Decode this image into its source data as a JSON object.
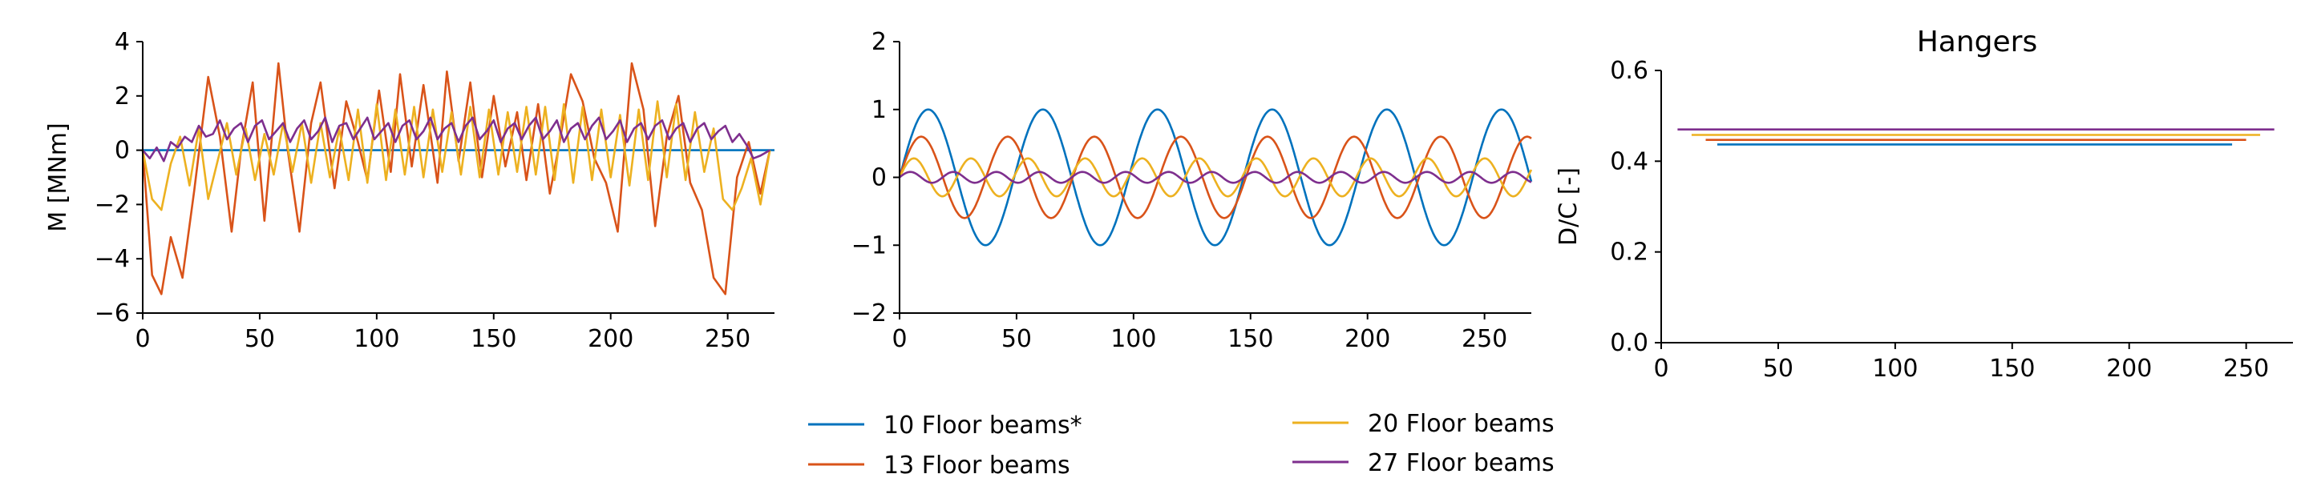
{
  "legend": {
    "items": [
      {
        "label": "10 Floor beams*",
        "color": "#0072BD"
      },
      {
        "label": "13 Floor beams",
        "color": "#D95319"
      },
      {
        "label": "20 Floor beams",
        "color": "#EDB120"
      },
      {
        "label": "27 Floor beams",
        "color": "#7E2F8E"
      }
    ]
  },
  "chart_data": [
    {
      "type": "line",
      "title": "",
      "xlabel": "",
      "ylabel": "M [MNm]",
      "xlim": [
        0,
        270
      ],
      "ylim": [
        -6,
        4
      ],
      "xticks": [
        "0",
        "50",
        "100",
        "150",
        "200",
        "250"
      ],
      "yticks": [
        "4",
        "2",
        "0",
        "−2",
        "−4",
        "−6"
      ],
      "grid": false,
      "series": [
        {
          "name": "10 Floor beams*",
          "color": "#0072BD",
          "x": [
            0,
            270
          ],
          "values": [
            0,
            0
          ]
        },
        {
          "name": "13 Floor beams",
          "color": "#D95319",
          "x": [
            0,
            4,
            8,
            12,
            17,
            22,
            28,
            33,
            38,
            42,
            47,
            52,
            58,
            62,
            67,
            72,
            76,
            82,
            87,
            92,
            96,
            101,
            106,
            110,
            115,
            120,
            126,
            130,
            135,
            140,
            145,
            150,
            155,
            160,
            164,
            169,
            174,
            178,
            183,
            188,
            193,
            198,
            203,
            209,
            214,
            219,
            224,
            229,
            234,
            239,
            244,
            249,
            254,
            259,
            264,
            268
          ],
          "values": [
            0,
            -4.6,
            -5.3,
            -3.2,
            -4.7,
            -1.5,
            2.7,
            0.5,
            -3.0,
            0,
            2.5,
            -2.6,
            3.2,
            0,
            -3.0,
            1.0,
            2.5,
            -1.4,
            1.8,
            0.3,
            -1.1,
            2.2,
            -0.8,
            2.8,
            -0.6,
            2.4,
            -1.2,
            2.9,
            -0.4,
            2.5,
            -1.0,
            2.0,
            -0.6,
            1.4,
            -1.1,
            1.7,
            -1.6,
            0.2,
            2.8,
            1.8,
            -0.3,
            -1.2,
            -3.0,
            3.2,
            1.5,
            -2.8,
            0.5,
            2.0,
            -1.2,
            -2.2,
            -4.7,
            -5.3,
            -1.0,
            0.3,
            -1.6,
            0
          ]
        },
        {
          "name": "20 Floor beams",
          "color": "#EDB120",
          "x": [
            0,
            4,
            8,
            12,
            16,
            20,
            24,
            28,
            32,
            36,
            40,
            44,
            48,
            52,
            56,
            60,
            64,
            68,
            72,
            76,
            80,
            84,
            88,
            92,
            96,
            100,
            104,
            108,
            112,
            116,
            120,
            124,
            128,
            132,
            136,
            140,
            144,
            148,
            152,
            156,
            160,
            164,
            168,
            172,
            176,
            180,
            184,
            188,
            192,
            196,
            200,
            204,
            208,
            212,
            216,
            220,
            224,
            228,
            232,
            236,
            240,
            244,
            248,
            252,
            256,
            260,
            264,
            268
          ],
          "values": [
            0,
            -1.8,
            -2.2,
            -0.5,
            0.5,
            -1.3,
            0.8,
            -1.8,
            -0.4,
            1.0,
            -0.9,
            0.8,
            -1.1,
            0.6,
            -0.9,
            1.0,
            -0.8,
            1.0,
            -1.2,
            1.0,
            -1.0,
            0.8,
            -1.1,
            1.5,
            -1.2,
            1.7,
            -1.1,
            1.5,
            -0.9,
            1.6,
            -1.0,
            1.5,
            -0.8,
            1.4,
            -0.9,
            1.6,
            -1.0,
            1.5,
            -0.9,
            1.4,
            -0.8,
            1.6,
            -0.9,
            1.6,
            -1.1,
            1.7,
            -1.2,
            1.6,
            -1.1,
            1.5,
            -1.0,
            1.3,
            -1.3,
            1.5,
            -1.1,
            1.8,
            -1.0,
            1.7,
            -1.1,
            1.4,
            -0.8,
            0.8,
            -1.8,
            -2.2,
            -1.4,
            -0.3,
            -2.0,
            0
          ]
        },
        {
          "name": "27 Floor beams",
          "color": "#7E2F8E",
          "x": [
            0,
            3,
            6,
            9,
            12,
            15,
            18,
            21,
            24,
            27,
            30,
            33,
            36,
            39,
            42,
            45,
            48,
            51,
            54,
            57,
            60,
            63,
            66,
            69,
            72,
            75,
            78,
            81,
            84,
            87,
            90,
            93,
            96,
            99,
            102,
            105,
            108,
            111,
            114,
            117,
            120,
            123,
            126,
            129,
            132,
            135,
            138,
            141,
            144,
            147,
            150,
            153,
            156,
            159,
            162,
            165,
            168,
            171,
            174,
            177,
            180,
            183,
            186,
            189,
            192,
            195,
            198,
            201,
            204,
            207,
            210,
            213,
            216,
            219,
            222,
            225,
            228,
            231,
            234,
            237,
            240,
            243,
            246,
            249,
            252,
            255,
            258,
            261,
            264,
            268
          ],
          "values": [
            0,
            -0.3,
            0.1,
            -0.4,
            0.3,
            0.1,
            0.5,
            0.3,
            0.9,
            0.5,
            0.6,
            1.1,
            0.4,
            0.8,
            1.0,
            0.3,
            0.9,
            1.1,
            0.4,
            0.7,
            1.0,
            0.3,
            0.8,
            1.1,
            0.4,
            0.7,
            1.2,
            0.3,
            0.9,
            1.0,
            0.4,
            0.8,
            1.2,
            0.4,
            0.7,
            1.0,
            0.3,
            0.9,
            1.1,
            0.4,
            0.7,
            1.2,
            0.4,
            0.8,
            1.0,
            0.3,
            0.9,
            1.2,
            0.4,
            0.7,
            1.1,
            0.3,
            0.8,
            1.0,
            0.4,
            0.9,
            1.2,
            0.4,
            0.7,
            1.1,
            0.3,
            0.8,
            1.0,
            0.4,
            0.9,
            1.2,
            0.4,
            0.7,
            1.1,
            0.3,
            0.8,
            1.0,
            0.4,
            0.9,
            1.1,
            0.4,
            0.8,
            1.0,
            0.3,
            0.8,
            1.0,
            0.4,
            0.7,
            0.9,
            0.3,
            0.6,
            0.2,
            -0.3,
            -0.2,
            0
          ]
        }
      ]
    },
    {
      "type": "line",
      "title": "",
      "xlabel": "",
      "ylabel": "",
      "xlim": [
        0,
        270
      ],
      "ylim": [
        -2,
        2
      ],
      "xticks": [
        "0",
        "50",
        "100",
        "150",
        "200",
        "250"
      ],
      "yticks": [
        "2",
        "1",
        "0",
        "−1",
        "−2"
      ],
      "grid": false,
      "series": [
        {
          "name": "10 Floor beams*",
          "color": "#0072BD",
          "shape": "humps",
          "start": 0,
          "end": 270,
          "period": 24.5,
          "amplitude": 1.0
        },
        {
          "name": "13 Floor beams",
          "color": "#D95319",
          "shape": "humps",
          "start": 0,
          "end": 270,
          "period": 18.5,
          "amplitude": 0.6
        },
        {
          "name": "20 Floor beams",
          "color": "#EDB120",
          "shape": "humps",
          "start": 0,
          "end": 270,
          "period": 12.2,
          "amplitude": 0.28
        },
        {
          "name": "27 Floor beams",
          "color": "#7E2F8E",
          "shape": "humps",
          "start": 0,
          "end": 270,
          "period": 9.2,
          "amplitude": 0.08
        }
      ]
    },
    {
      "type": "line",
      "title": "Hangers",
      "xlabel": "",
      "ylabel": "D/C [-]",
      "xlim": [
        0,
        270
      ],
      "ylim": [
        0,
        0.6
      ],
      "xticks": [
        "0",
        "50",
        "100",
        "150",
        "200",
        "250"
      ],
      "yticks": [
        "0.6",
        "0.4",
        "0.2",
        "0.0"
      ],
      "grid": false,
      "series": [
        {
          "name": "10 Floor beams*",
          "color": "#0072BD",
          "x": [
            24,
            244
          ],
          "values": [
            0.437,
            0.437
          ]
        },
        {
          "name": "13 Floor beams",
          "color": "#D95319",
          "x": [
            19,
            250
          ],
          "values": [
            0.447,
            0.447
          ]
        },
        {
          "name": "20 Floor beams",
          "color": "#EDB120",
          "x": [
            13,
            256
          ],
          "values": [
            0.458,
            0.458
          ]
        },
        {
          "name": "27 Floor beams",
          "color": "#7E2F8E",
          "x": [
            7,
            262
          ],
          "values": [
            0.47,
            0.47
          ]
        }
      ]
    }
  ]
}
